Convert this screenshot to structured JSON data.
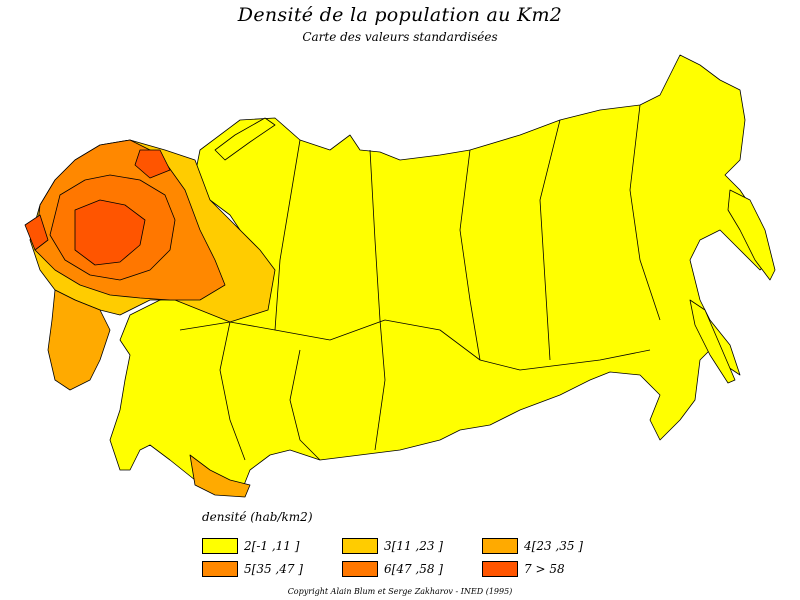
{
  "title": "Densité de la population au Km2",
  "subtitle": "Carte des valeurs standardisées",
  "legend": {
    "title": "densité (hab/km2)",
    "items": [
      {
        "label": "2[-1 ,11 ]",
        "color": "#ffff00"
      },
      {
        "label": "3[11 ,23 ]",
        "color": "#ffcc00"
      },
      {
        "label": "4[23 ,35 ]",
        "color": "#ffaa00"
      },
      {
        "label": "5[35 ,47 ]",
        "color": "#ff8800"
      },
      {
        "label": "6[47 ,58 ]",
        "color": "#ff7700"
      },
      {
        "label": "7 > 58",
        "color": "#ff5500"
      }
    ]
  },
  "copyright": "Copyright Alain Blum et Serge Zakharov - INED (1995)",
  "map": {
    "border_color": "#000000"
  }
}
